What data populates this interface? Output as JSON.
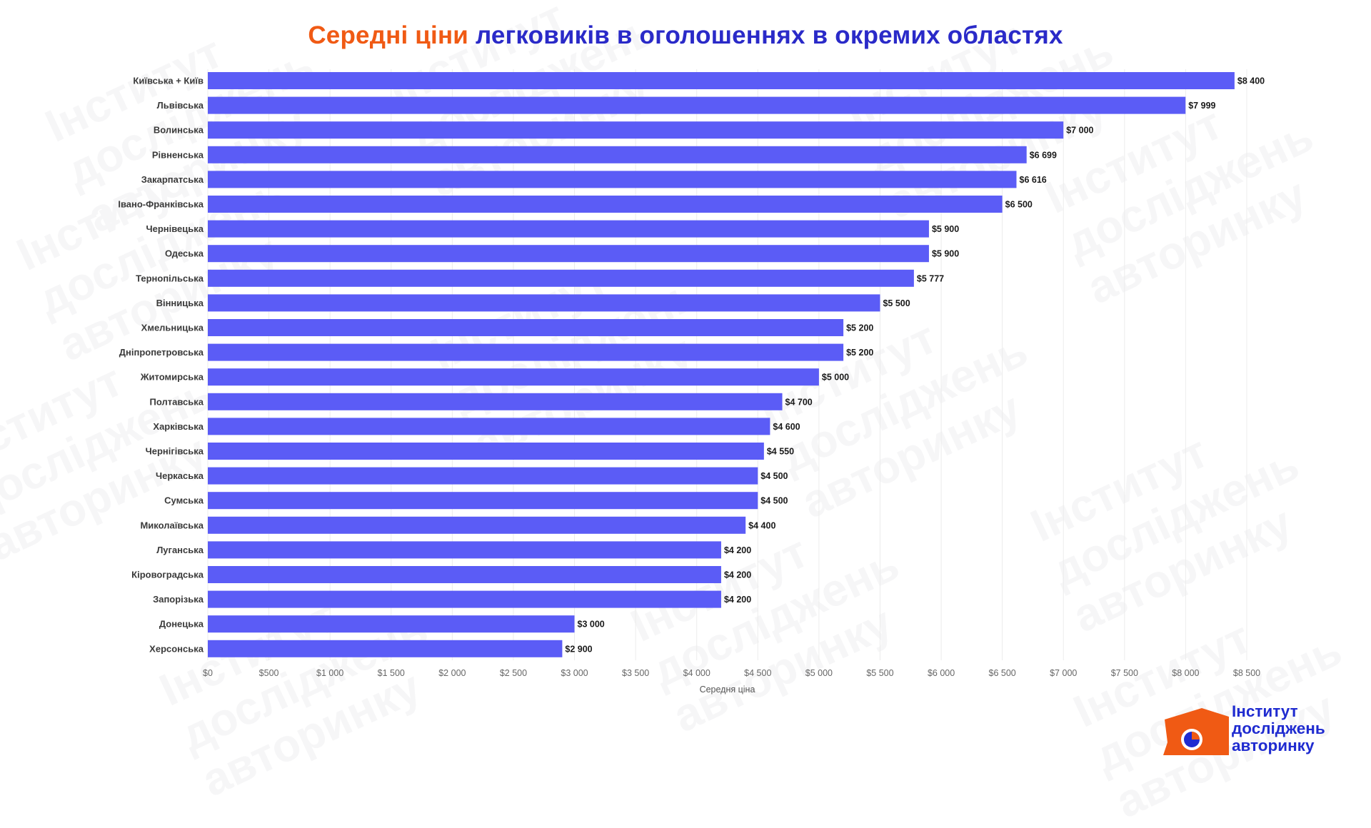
{
  "title": {
    "highlight": "Середні ціни",
    "rest": " легковиків в оголошеннях в окремих областях"
  },
  "watermark": {
    "line1": "Інститут",
    "line2": "досліджень",
    "line3": "авторинку"
  },
  "logo": {
    "line1": "Інститут",
    "line2": "досліджень",
    "line3": "авторинку"
  },
  "colors": {
    "bar": "#5b5cf6",
    "title_highlight": "#f05a14",
    "title_rest": "#2a2ac8",
    "logo_orange": "#f05a14",
    "logo_blue": "#1f2bd0",
    "grid": "#ececec"
  },
  "chart_data": {
    "type": "bar",
    "orientation": "horizontal",
    "categories": [
      "Київська + Київ",
      "Львівська",
      "Волинська",
      "Рівненська",
      "Закарпатська",
      "Івано-Франківська",
      "Чернівецька",
      "Одеська",
      "Тернопільська",
      "Вінницька",
      "Хмельницька",
      "Дніпропетровська",
      "Житомирська",
      "Полтавська",
      "Харківська",
      "Чернігівська",
      "Черкаська",
      "Сумська",
      "Миколаївська",
      "Луганська",
      "Кіровоградська",
      "Запорізька",
      "Донецька",
      "Херсонська"
    ],
    "values": [
      8400,
      7999,
      7000,
      6699,
      6616,
      6500,
      5900,
      5900,
      5777,
      5500,
      5200,
      5200,
      5000,
      4700,
      4600,
      4550,
      4500,
      4500,
      4400,
      4200,
      4200,
      4200,
      3000,
      2900
    ],
    "value_labels": [
      "$8 400",
      "$7 999",
      "$7 000",
      "$6 699",
      "$6 616",
      "$6 500",
      "$5 900",
      "$5 900",
      "$5 777",
      "$5 500",
      "$5 200",
      "$5 200",
      "$5 000",
      "$4 700",
      "$4 600",
      "$4 550",
      "$4 500",
      "$4 500",
      "$4 400",
      "$4 200",
      "$4 200",
      "$4 200",
      "$3 000",
      "$2 900"
    ],
    "x_ticks": [
      0,
      500,
      1000,
      1500,
      2000,
      2500,
      3000,
      3500,
      4000,
      4500,
      5000,
      5500,
      6000,
      6500,
      7000,
      7500,
      8000,
      8500
    ],
    "x_tick_labels": [
      "$0",
      "$500",
      "$1 000",
      "$1 500",
      "$2 000",
      "$2 500",
      "$3 000",
      "$3 500",
      "$4 000",
      "$4 500",
      "$5 000",
      "$5 500",
      "$6 000",
      "$6 500",
      "$7 000",
      "$7 500",
      "$8 000",
      "$8 500"
    ],
    "xlim": [
      0,
      8500
    ],
    "xlabel": "Середня ціна",
    "ylabel": "",
    "grid": "vertical",
    "legend": "none"
  }
}
